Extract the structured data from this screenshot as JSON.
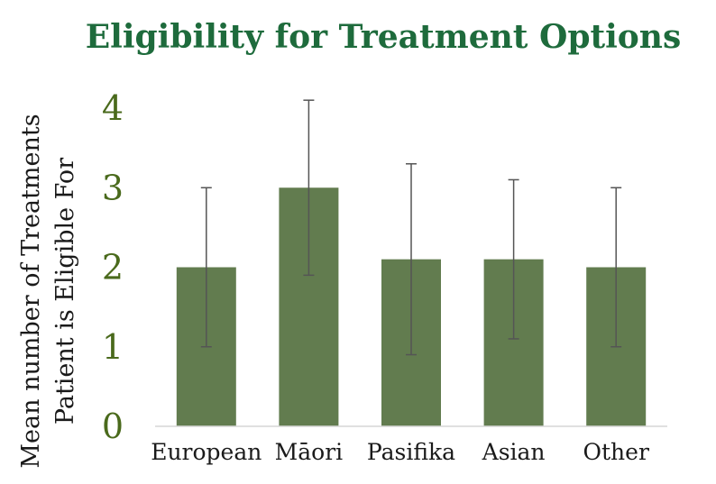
{
  "chart_data": {
    "type": "bar",
    "title": "Eligibility for Treatment Options",
    "ylabel": "Mean number of Treatments Patient is Eligible For",
    "xlabel": "",
    "categories": [
      "European",
      "Māori",
      "Pasifika",
      "Asian",
      "Other"
    ],
    "values": [
      2.0,
      3.0,
      2.1,
      2.1,
      2.0
    ],
    "error_low": [
      1.0,
      1.9,
      0.9,
      1.1,
      1.0
    ],
    "error_high": [
      3.0,
      4.1,
      3.3,
      3.1,
      3.0
    ],
    "ylim": [
      0,
      4
    ],
    "yticks": [
      "0",
      "1",
      "2",
      "3",
      "4"
    ],
    "grid": false,
    "colors": {
      "bar": "#627c4f",
      "error_bar": "#555555",
      "title": "#1e6b3c",
      "ytick": "#4a6a1c",
      "axis": "#d6d6d6"
    }
  }
}
